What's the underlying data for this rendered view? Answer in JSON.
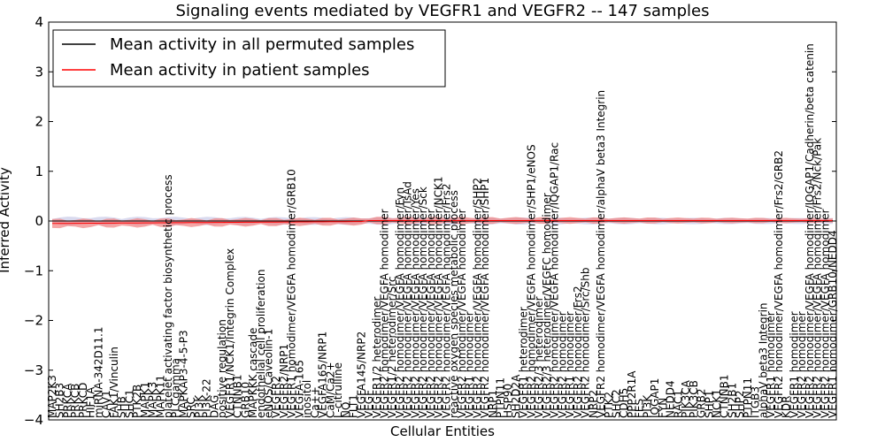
{
  "chart_data": {
    "type": "line",
    "title": "Signaling events mediated by VEGFR1 and VEGFR2 -- 147 samples",
    "xlabel": "Cellular Entities",
    "ylabel": "Inferred Activity",
    "ylim": [
      -4,
      4
    ],
    "yticks": [
      "4",
      "3",
      "2",
      "1",
      "0",
      "−1",
      "−2",
      "−3",
      "−4"
    ],
    "legend": {
      "placement": "top-left",
      "entries": [
        {
          "label": "Mean activity in all permuted samples",
          "color": "#000000"
        },
        {
          "label": "Mean activity in patient samples",
          "color": "#ff0000"
        }
      ]
    },
    "colors": {
      "permuted_band": "#c9cbe8",
      "patient_band": "#f08080",
      "permuted_line": "#000000",
      "patient_line": "#ff0000"
    },
    "categories": [
      "MAP2K3",
      "SH2B3",
      "PRKCA",
      "PRKCB",
      "PRKCD",
      "HIF1A",
      "miRNA-342D11.1",
      "CAV1",
      "FAK1/Vinculin",
      "SHB",
      "SHC1",
      "PTK2B",
      "MAPK1",
      "MAPK3",
      "MAPK11",
      "platelet activating factor biosynthetic process",
      "PLCgamma",
      "MAPKAP3-4-5-P3",
      "SRC",
      "PI3K",
      "PI3K-22",
      "DAG",
      "positive regulation",
      "VEGFR1/NCK1/Integrin Complex",
      "CTNNB1",
      "GRB10",
      "MAPKKK cascade",
      "endothelial cell proliferation",
      "eNOS/Caveolin-1",
      "VEGFR2",
      "VEGFR2/NRP1",
      "VEGFR1 homodimer/VEGFA homodimer/GRB10",
      "VEGFA-165",
      "inositol",
      "Ca++",
      "VEGFA165/NRP1",
      "CaM/Ca2+",
      "L-citrulline",
      "NO",
      "FLT1",
      "VEGFA145/NRP2",
      "VEGF",
      "VEGFR1/2 heterodimer",
      "VEGFR2 homodimer/VEGFA homodimer",
      "VEGFR1/2 heterodimer/Src",
      "VEGFR2 homodimer/VEGFA homodimer/Fyn",
      "VEGFR2 homodimer/VEGFA homodimer/TsAd",
      "VEGFR2 homodimer/VEGFA homodimer/Yes",
      "VEGFR2 homodimer/VEGFA homodimer/Sck",
      "VEGFR2 homodimer/VEGFA homodimer",
      "VEGFR2 homodimer/VEGFA homodimer/NCK1",
      "VEGFR2 homodimer/VEGFA homodimer/Frs2",
      "reactive oxygen species metabolic process",
      "VEGFR2 homodimer/VEGFA homodimer",
      "VEGFR1 homodimer",
      "VEGFR2 homodimer/VEGFA homodimer/SHP2",
      "VEGFR2 homodimer/VEGFA homodimer/SHP1",
      "NRP1",
      "PTPN11",
      "HSP90",
      "SH2D2A",
      "VEGFR1 heterodimer",
      "VEGFR2 homodimer/VEGFA homodimer/SHP1/eNOS",
      "VEGFR2/3 heterodimer",
      "VEGFR2/3 heterodimer/VEGFC homodimer",
      "VEGFR2 homodimer/VEGFA homodimer/IQGAP1/Rac",
      "VEGFR2 homodimer",
      "VEGFR1 homodimer",
      "VEGFR2 homodimer/Frs2",
      "VEGFR2 homodimer/Src/Shb",
      "NRP2",
      "VEGFR2 homodimer/VEGFA homodimer/alphaV beta3 Integrin",
      "PTK2",
      "SHC2",
      "CDH5",
      "PPP2R1A",
      "FES",
      "PI3K",
      "IQGAP1",
      "FYN",
      "NEDD4",
      "RAC1",
      "PIK3CA",
      "PIK3CB",
      "GRB2",
      "SHP1",
      "NCK1",
      "CTNNB1",
      "SH2B1",
      "SHP2",
      "PTPN11",
      "ITGB3",
      "alphaV beta3 Integrin",
      "VEGFR1 homodimer",
      "VEGFR2 homodimer/VEGFA homodimer/Frs2/GRB2",
      "KDR",
      "VEGFR1 homodimer",
      "VEGFR2 homodimer",
      "VEGFR2 homodimer/VEGFA homodimer/IQGAP1/Cadherin/beta catenin",
      "VEGFR2 homodimer/VEGFA homodimer/Frs2/Nck/Pak",
      "VEGFR2 homodimer/VEGFA homodimer",
      "VEGFR1 homodimer/GRB10/NEDD4"
    ]
  }
}
